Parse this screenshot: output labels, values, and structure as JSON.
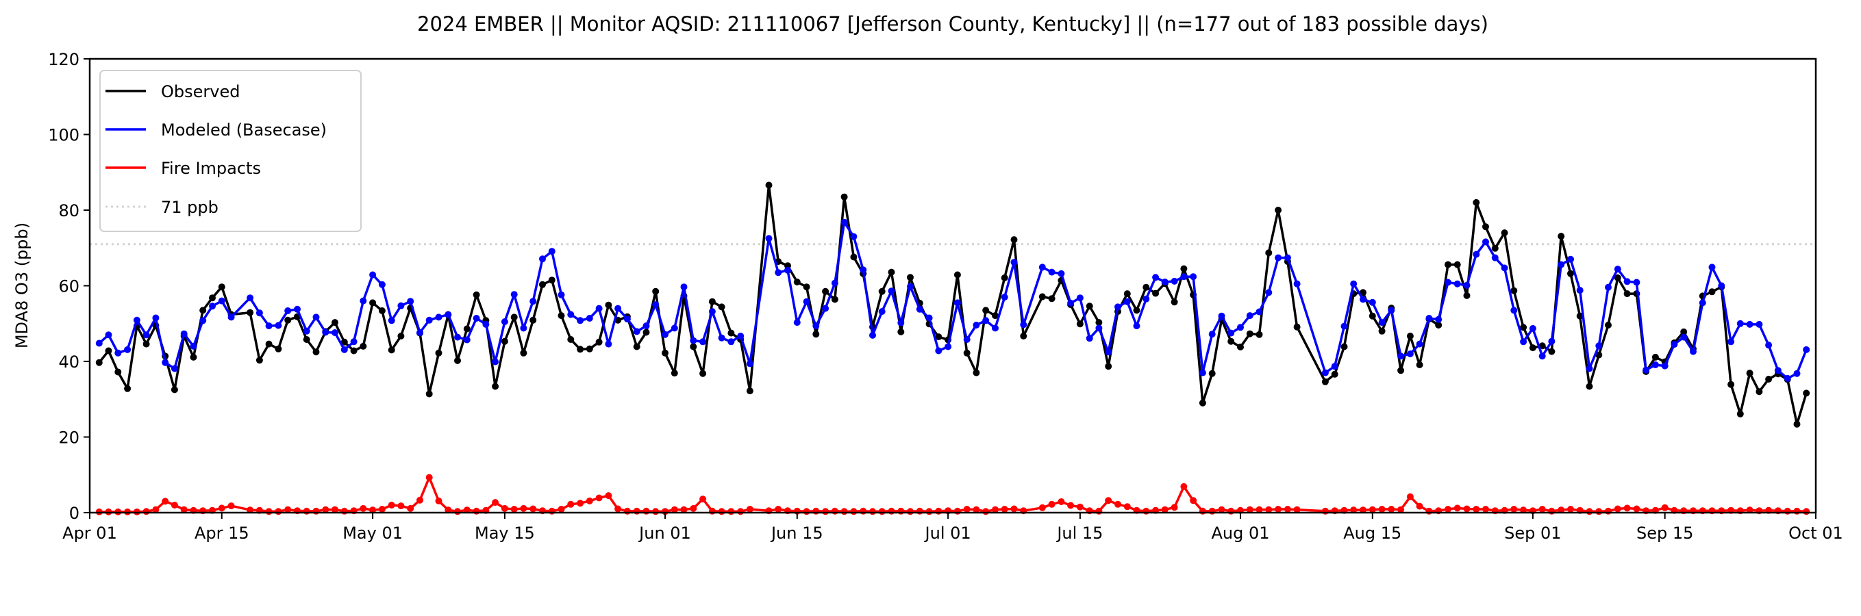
{
  "chart_data": {
    "type": "line",
    "title": "2024 EMBER || Monitor AQSID: 211110067 [Jefferson County, Kentucky] || (n=177 out of 183 possible days)",
    "xlabel": "",
    "ylabel": "MDA8 O3 (ppb)",
    "x_unit": "days since 2024-04-01",
    "xlim": [
      0,
      183
    ],
    "ylim": [
      0,
      120
    ],
    "grid": false,
    "legend_position": "top-left",
    "x_ticks": [
      {
        "label": "Apr 01",
        "day": 0
      },
      {
        "label": "Apr 15",
        "day": 14
      },
      {
        "label": "May 01",
        "day": 30
      },
      {
        "label": "May 15",
        "day": 44
      },
      {
        "label": "Jun 01",
        "day": 61
      },
      {
        "label": "Jun 15",
        "day": 75
      },
      {
        "label": "Jul 01",
        "day": 91
      },
      {
        "label": "Jul 15",
        "day": 105
      },
      {
        "label": "Aug 01",
        "day": 122
      },
      {
        "label": "Aug 15",
        "day": 136
      },
      {
        "label": "Sep 01",
        "day": 153
      },
      {
        "label": "Sep 15",
        "day": 167
      },
      {
        "label": "Oct 01",
        "day": 183
      }
    ],
    "y_ticks": [
      {
        "label": "0",
        "value": 0
      },
      {
        "label": "20",
        "value": 20
      },
      {
        "label": "40",
        "value": 40
      },
      {
        "label": "60",
        "value": 60
      },
      {
        "label": "80",
        "value": 80
      },
      {
        "label": "100",
        "value": 100
      },
      {
        "label": "120",
        "value": 120
      }
    ],
    "reference_line": {
      "name": "71 ppb",
      "value": 71,
      "color": "#d3d3d3"
    },
    "x": [
      1,
      2,
      3,
      4,
      5,
      6,
      7,
      8,
      9,
      10,
      11,
      12,
      13,
      14,
      15,
      17,
      18,
      19,
      20,
      21,
      22,
      23,
      24,
      25,
      26,
      27,
      28,
      29,
      30,
      31,
      32,
      33,
      34,
      35,
      36,
      37,
      38,
      39,
      40,
      41,
      42,
      43,
      44,
      45,
      46,
      47,
      48,
      49,
      50,
      51,
      52,
      53,
      54,
      55,
      56,
      57,
      58,
      59,
      60,
      61,
      62,
      63,
      64,
      65,
      66,
      67,
      68,
      69,
      70,
      72,
      73,
      74,
      75,
      76,
      77,
      78,
      79,
      80,
      81,
      82,
      83,
      84,
      85,
      86,
      87,
      88,
      89,
      90,
      91,
      92,
      93,
      94,
      95,
      96,
      97,
      98,
      99,
      101,
      102,
      103,
      104,
      105,
      106,
      107,
      108,
      109,
      110,
      111,
      112,
      113,
      114,
      115,
      116,
      117,
      118,
      119,
      120,
      121,
      122,
      123,
      124,
      125,
      126,
      127,
      128,
      131,
      132,
      133,
      134,
      135,
      136,
      137,
      138,
      139,
      140,
      141,
      142,
      143,
      144,
      145,
      146,
      147,
      148,
      149,
      150,
      151,
      152,
      153,
      154,
      155,
      156,
      157,
      158,
      159,
      160,
      161,
      162,
      163,
      164,
      165,
      166,
      167,
      168,
      169,
      170,
      171,
      172,
      173,
      174,
      175,
      176,
      177,
      178,
      179,
      180,
      181,
      182
    ],
    "series": [
      {
        "name": "Observed",
        "color": "#000000",
        "values": [
          39.7,
          42.8,
          37.2,
          32.8,
          49.4,
          44.6,
          49.5,
          41.4,
          32.5,
          46.7,
          41.1,
          53.5,
          56.8,
          59.7,
          52.4,
          52.9,
          40.3,
          44.6,
          43.3,
          50.9,
          51.8,
          45.8,
          42.5,
          47.9,
          50.3,
          45.1,
          42.8,
          44.0,
          55.5,
          53.4,
          43.0,
          46.7,
          54.1,
          47.5,
          31.4,
          42.2,
          52.3,
          40.2,
          48.6,
          57.6,
          50.8,
          33.4,
          45.3,
          51.7,
          42.2,
          50.9,
          60.3,
          61.5,
          52.1,
          45.8,
          43.2,
          43.3,
          45.1,
          54.9,
          50.9,
          51.8,
          43.9,
          47.7,
          58.5,
          42.2,
          36.9,
          57.3,
          43.9,
          36.8,
          55.8,
          54.4,
          47.5,
          45.8,
          32.2,
          86.6,
          66.4,
          65.3,
          61.0,
          59.7,
          47.2,
          58.5,
          56.4,
          83.5,
          67.6,
          63.2,
          49.1,
          58.5,
          63.6,
          47.8,
          62.2,
          55.4,
          49.9,
          46.5,
          45.7,
          62.9,
          42.2,
          37.0,
          53.5,
          52.1,
          62.1,
          72.2,
          46.7,
          57.1,
          56.6,
          61.4,
          55.0,
          49.9,
          54.6,
          50.3,
          38.7,
          53.2,
          57.9,
          53.5,
          59.6,
          58.0,
          60.6,
          55.7,
          64.5,
          57.6,
          29.0,
          36.8,
          51.1,
          45.3,
          43.8,
          47.3,
          47.1,
          68.7,
          80.0,
          66.4,
          49.1,
          34.6,
          36.6,
          43.9,
          57.9,
          58.2,
          52.0,
          48.0,
          54.1,
          37.6,
          46.7,
          39.1,
          51.2,
          49.6,
          65.6,
          65.6,
          57.4,
          82.0,
          75.6,
          69.9,
          74.0,
          58.7,
          49.0,
          43.6,
          44.1,
          42.6,
          73.1,
          63.2,
          52.0,
          33.4,
          41.7,
          49.6,
          62.1,
          57.9,
          57.9,
          37.3,
          41.1,
          39.9,
          44.9,
          47.8,
          43.3,
          57.3,
          58.4,
          59.7,
          33.9,
          26.1,
          36.9,
          32.0,
          35.3,
          36.7,
          35.2,
          23.4,
          31.6
        ]
      },
      {
        "name": "Modeled (Basecase)",
        "color": "#0000ff",
        "values": [
          44.8,
          47.0,
          42.2,
          43.1,
          50.9,
          47.0,
          51.5,
          39.7,
          38.1,
          47.3,
          44.0,
          50.8,
          54.6,
          56.0,
          51.7,
          56.8,
          52.8,
          49.4,
          49.5,
          53.4,
          53.8,
          48.0,
          51.7,
          47.7,
          47.6,
          43.1,
          45.2,
          56.0,
          62.9,
          60.3,
          50.8,
          54.7,
          55.9,
          47.6,
          50.9,
          51.7,
          52.4,
          46.4,
          45.7,
          51.4,
          49.8,
          39.9,
          50.5,
          57.7,
          48.8,
          55.9,
          67.1,
          69.1,
          57.6,
          52.4,
          50.8,
          51.4,
          54.0,
          44.6,
          54.0,
          51.2,
          47.9,
          49.4,
          55.0,
          47.1,
          48.8,
          59.7,
          45.5,
          45.2,
          53.2,
          46.2,
          45.2,
          46.7,
          39.4,
          72.5,
          63.5,
          64.1,
          50.3,
          55.8,
          49.4,
          54.0,
          60.7,
          76.8,
          73.0,
          64.2,
          46.9,
          53.2,
          58.6,
          50.2,
          59.8,
          53.8,
          51.5,
          42.8,
          43.9,
          55.5,
          45.8,
          49.6,
          50.8,
          48.8,
          57.0,
          66.2,
          49.7,
          64.9,
          63.6,
          63.2,
          55.4,
          56.8,
          46.1,
          48.8,
          42.5,
          54.4,
          55.8,
          49.4,
          56.5,
          62.2,
          61.0,
          61.2,
          62.4,
          62.4,
          37.0,
          47.2,
          52.0,
          47.5,
          49.0,
          52.1,
          53.1,
          58.2,
          67.4,
          67.4,
          60.5,
          37.0,
          38.7,
          49.3,
          60.5,
          56.4,
          55.6,
          50.3,
          53.5,
          41.4,
          42.0,
          44.6,
          51.4,
          51.1,
          60.9,
          60.5,
          60.1,
          68.3,
          71.6,
          67.4,
          64.7,
          53.5,
          45.2,
          48.7,
          41.4,
          45.3,
          65.6,
          67.0,
          58.8,
          38.1,
          44.1,
          59.6,
          64.4,
          61.1,
          60.9,
          37.7,
          39.1,
          38.8,
          44.5,
          46.4,
          42.6,
          55.5,
          64.9,
          60.0,
          45.2,
          50.0,
          49.8,
          49.8,
          44.3,
          37.6,
          35.5,
          36.8,
          43.1
        ]
      },
      {
        "name": "Fire Impacts",
        "color": "#ff0000",
        "values": [
          0.2,
          0.2,
          0.2,
          0.2,
          0.2,
          0.3,
          0.8,
          3.0,
          2.0,
          0.8,
          0.6,
          0.5,
          0.6,
          1.2,
          1.8,
          0.7,
          0.6,
          0.3,
          0.3,
          0.8,
          0.5,
          0.4,
          0.4,
          0.8,
          0.8,
          0.4,
          0.5,
          1.1,
          0.7,
          0.9,
          2.0,
          1.8,
          1.1,
          3.3,
          9.3,
          3.1,
          0.7,
          0.3,
          0.7,
          0.4,
          0.6,
          2.7,
          1.1,
          0.9,
          1.1,
          1.0,
          0.5,
          0.4,
          0.9,
          2.2,
          2.5,
          3.1,
          3.9,
          4.5,
          1.0,
          0.4,
          0.4,
          0.4,
          0.3,
          0.3,
          0.8,
          0.8,
          1.1,
          3.6,
          0.4,
          0.3,
          0.3,
          0.3,
          0.9,
          0.5,
          0.9,
          0.5,
          0.4,
          0.3,
          0.4,
          0.3,
          0.4,
          0.3,
          0.3,
          0.4,
          0.3,
          0.3,
          0.4,
          0.4,
          0.3,
          0.4,
          0.3,
          0.4,
          0.5,
          0.4,
          0.9,
          0.8,
          0.3,
          0.8,
          0.9,
          1.0,
          0.5,
          1.3,
          2.2,
          2.9,
          1.9,
          1.5,
          0.5,
          0.4,
          3.2,
          2.2,
          1.6,
          0.6,
          0.4,
          0.6,
          0.8,
          1.4,
          6.9,
          3.2,
          0.4,
          0.4,
          0.8,
          0.4,
          0.6,
          0.8,
          0.8,
          0.8,
          0.9,
          0.9,
          0.8,
          0.4,
          0.5,
          0.6,
          0.7,
          0.7,
          0.8,
          0.9,
          0.9,
          0.8,
          4.2,
          1.7,
          0.4,
          0.5,
          0.9,
          1.2,
          1.0,
          0.9,
          0.9,
          0.5,
          0.6,
          0.9,
          0.7,
          0.5,
          0.9,
          0.4,
          0.7,
          0.9,
          0.6,
          0.3,
          0.3,
          0.4,
          1.0,
          1.2,
          1.0,
          0.5,
          0.6,
          1.3,
          0.6,
          0.5,
          0.5,
          0.5,
          0.5,
          0.5,
          0.6,
          0.5,
          0.7,
          0.5,
          0.6,
          0.5,
          0.4,
          0.4,
          0.3
        ]
      }
    ]
  }
}
